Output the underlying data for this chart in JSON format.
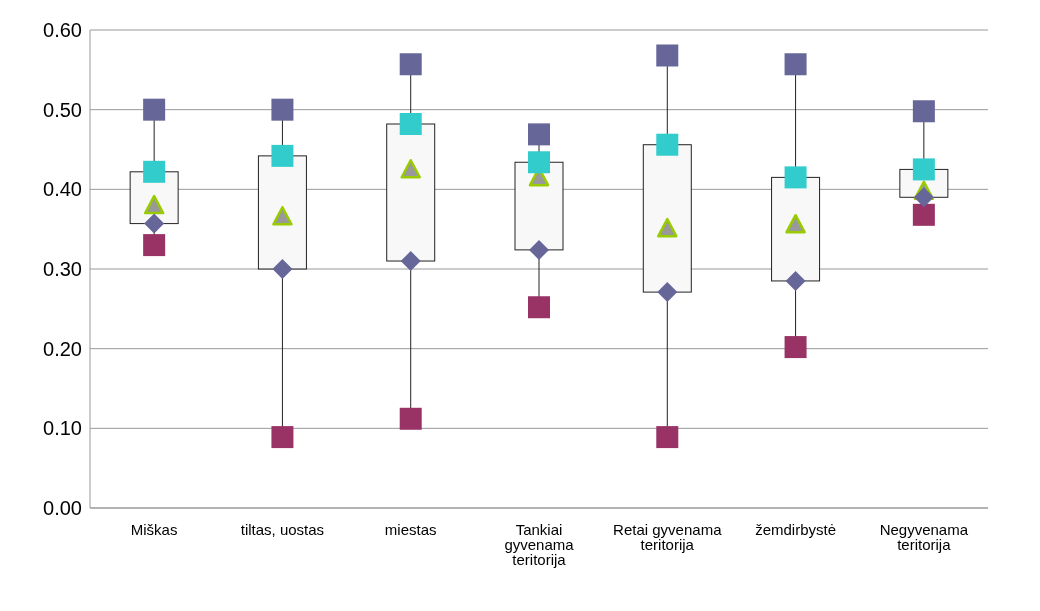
{
  "chart_data": {
    "type": "box",
    "categories": [
      "Miškas",
      "tiltas, uostas",
      "miestas",
      "Tankiai gyvenama teritorija",
      "Retai gyvenama teritorija",
      "žemdirbystė",
      "Negyvenama teritorija"
    ],
    "boxes": [
      {
        "low": 0.33,
        "q1": 0.357,
        "median": 0.379,
        "q3": 0.422,
        "high": 0.5
      },
      {
        "low": 0.089,
        "q1": 0.3,
        "median": 0.365,
        "q3": 0.442,
        "high": 0.5
      },
      {
        "low": 0.112,
        "q1": 0.31,
        "median": 0.424,
        "q3": 0.482,
        "high": 0.557
      },
      {
        "low": 0.252,
        "q1": 0.324,
        "median": 0.414,
        "q3": 0.434,
        "high": 0.469
      },
      {
        "low": 0.089,
        "q1": 0.271,
        "median": 0.35,
        "q3": 0.456,
        "high": 0.568
      },
      {
        "low": 0.202,
        "q1": 0.285,
        "median": 0.355,
        "q3": 0.415,
        "high": 0.557
      },
      {
        "low": 0.368,
        "q1": 0.39,
        "median": 0.397,
        "q3": 0.425,
        "high": 0.498
      }
    ],
    "color": "#f8f8f8",
    "series": [
      {
        "type": "scatter",
        "marker": "square",
        "color": "#993366",
        "x": [
          "Miškas",
          "tiltas, uostas",
          "miestas",
          "Tankiai gyvenama teritorija",
          "Retai gyvenama teritorija",
          "žemdirbystė",
          "Negyvenama teritorija"
        ],
        "values": [
          0.33,
          0.089,
          0.112,
          0.252,
          0.089,
          0.202,
          0.368
        ]
      },
      {
        "type": "scatter",
        "marker": "diamond",
        "color": "#666699",
        "x": [
          "Miškas",
          "tiltas, uostas",
          "miestas",
          "Tankiai gyvenama teritorija",
          "Retai gyvenama teritorija",
          "žemdirbystė",
          "Negyvenama teritorija"
        ],
        "values": [
          0.357,
          0.3,
          0.31,
          0.324,
          0.271,
          0.285,
          0.39
        ]
      },
      {
        "type": "scatter",
        "marker": "square",
        "color": "#33cccc",
        "x": [
          "Miškas",
          "tiltas, uostas",
          "miestas",
          "Tankiai gyvenama teritorija",
          "Retai gyvenama teritorija",
          "žemdirbystė",
          "Negyvenama teritorija"
        ],
        "values": [
          0.422,
          0.442,
          0.482,
          0.434,
          0.456,
          0.415,
          0.425
        ]
      },
      {
        "type": "scatter",
        "marker": "square",
        "color": "#666699",
        "x": [
          "Miškas",
          "tiltas, uostas",
          "miestas",
          "Tankiai gyvenama teritorija",
          "Retai gyvenama teritorija",
          "žemdirbystė",
          "Negyvenama teritorija"
        ],
        "values": [
          0.5,
          0.5,
          0.557,
          0.469,
          0.568,
          0.557,
          0.498
        ]
      }
    ],
    "ylim": [
      0,
      0.6
    ],
    "yticks": [
      {
        "value": 0,
        "label": "0.00"
      },
      {
        "value": 0.1,
        "label": "0.10"
      },
      {
        "value": 0.2,
        "label": "0.20"
      },
      {
        "value": 0.3,
        "label": "0.30"
      },
      {
        "value": 0.4,
        "label": "0.40"
      },
      {
        "value": 0.5,
        "label": "0.50"
      },
      {
        "value": 0.6,
        "label": "0.60"
      }
    ],
    "grid": "y"
  }
}
